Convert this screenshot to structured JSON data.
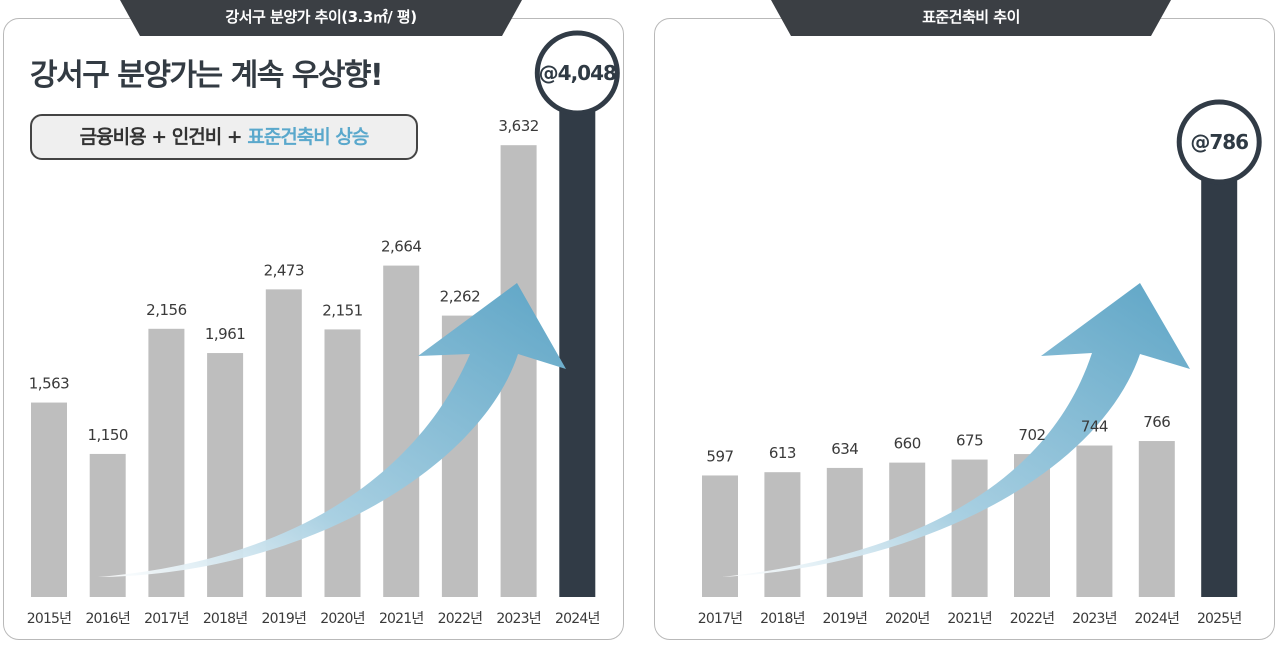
{
  "left": {
    "tab_title": "강서구 분양가 추이(3.3㎡/ 평)",
    "headline": "강서구 분양가는 계속 우상향!",
    "pill_prefix": "금융비용 + 인건비 + ",
    "pill_highlight": "표준건축비 상승"
  },
  "right": {
    "tab_title": "표준건축비 추이"
  },
  "colors": {
    "bar": "#bebebe",
    "highlight_bar": "#313b46",
    "tab": "#3b3f44",
    "arrow": "#6aaccb"
  },
  "chart_data": [
    {
      "type": "bar",
      "categories": [
        "2015년",
        "2016년",
        "2017년",
        "2018년",
        "2019년",
        "2020년",
        "2021년",
        "2022년",
        "2023년",
        "2024년"
      ],
      "values": [
        1563,
        1150,
        2156,
        1961,
        2473,
        2151,
        2664,
        2262,
        3632,
        4048
      ],
      "value_labels": [
        "1,563",
        "1,150",
        "2,156",
        "1,961",
        "2,473",
        "2,151",
        "2,664",
        "2,262",
        "3,632",
        "@4,048"
      ],
      "highlight_index": 9,
      "title": "강서구 분양가 추이(3.3㎡/ 평)",
      "ylim": [
        0,
        4300
      ]
    },
    {
      "type": "bar",
      "categories": [
        "2017년",
        "2018년",
        "2019년",
        "2020년",
        "2021년",
        "2022년",
        "2023년",
        "2024년",
        "2025년"
      ],
      "values": [
        597,
        613,
        634,
        660,
        675,
        702,
        744,
        766,
        786
      ],
      "value_labels": [
        "597",
        "613",
        "634",
        "660",
        "675",
        "702",
        "744",
        "766",
        "@786"
      ],
      "highlight_index": 8,
      "title": "표준건축비 추이",
      "ylim": [
        0,
        800
      ]
    }
  ]
}
